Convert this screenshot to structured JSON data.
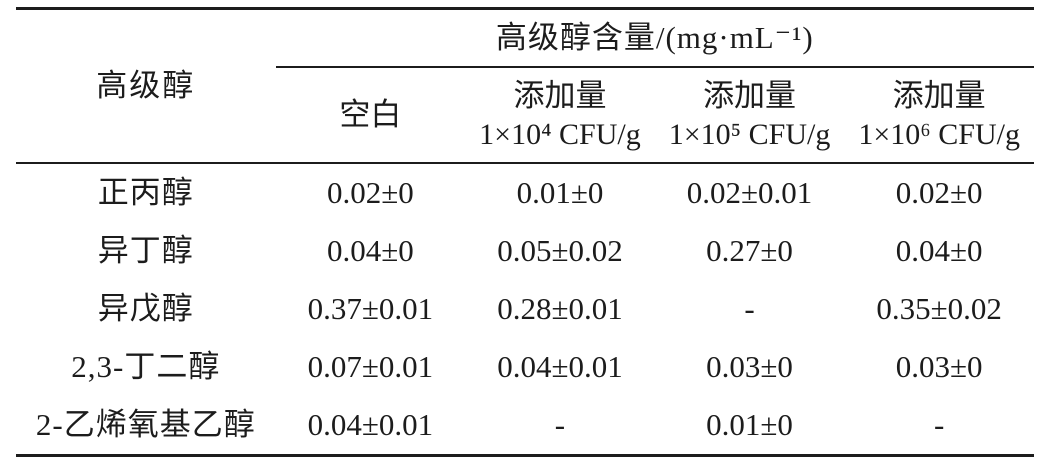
{
  "table": {
    "corner_header": "高级醇",
    "group_header": "高级醇含量/(mg·mL⁻¹)",
    "col_headers": [
      {
        "line1": "空白",
        "line2": ""
      },
      {
        "line1": "添加量",
        "line2": "1×10⁴ CFU/g"
      },
      {
        "line1": "添加量",
        "line2": "1×10⁵ CFU/g"
      },
      {
        "line1": "添加量",
        "line2": "1×10⁶ CFU/g"
      }
    ],
    "rows": [
      {
        "label": "正丙醇",
        "values": [
          "0.02±0",
          "0.01±0",
          "0.02±0.01",
          "0.02±0"
        ]
      },
      {
        "label": "异丁醇",
        "values": [
          "0.04±0",
          "0.05±0.02",
          "0.27±0",
          "0.04±0"
        ]
      },
      {
        "label": "异戊醇",
        "values": [
          "0.37±0.01",
          "0.28±0.01",
          "-",
          "0.35±0.02"
        ]
      },
      {
        "label": "2,3-丁二醇",
        "values": [
          "0.07±0.01",
          "0.04±0.01",
          "0.03±0",
          "0.03±0"
        ]
      },
      {
        "label": "2-乙烯氧基乙醇",
        "values": [
          "0.04±0.01",
          "-",
          "0.01±0",
          "-"
        ]
      }
    ],
    "colors": {
      "text": "#1c1c1c",
      "rule": "#1c1c1c",
      "background": "#ffffff"
    }
  }
}
